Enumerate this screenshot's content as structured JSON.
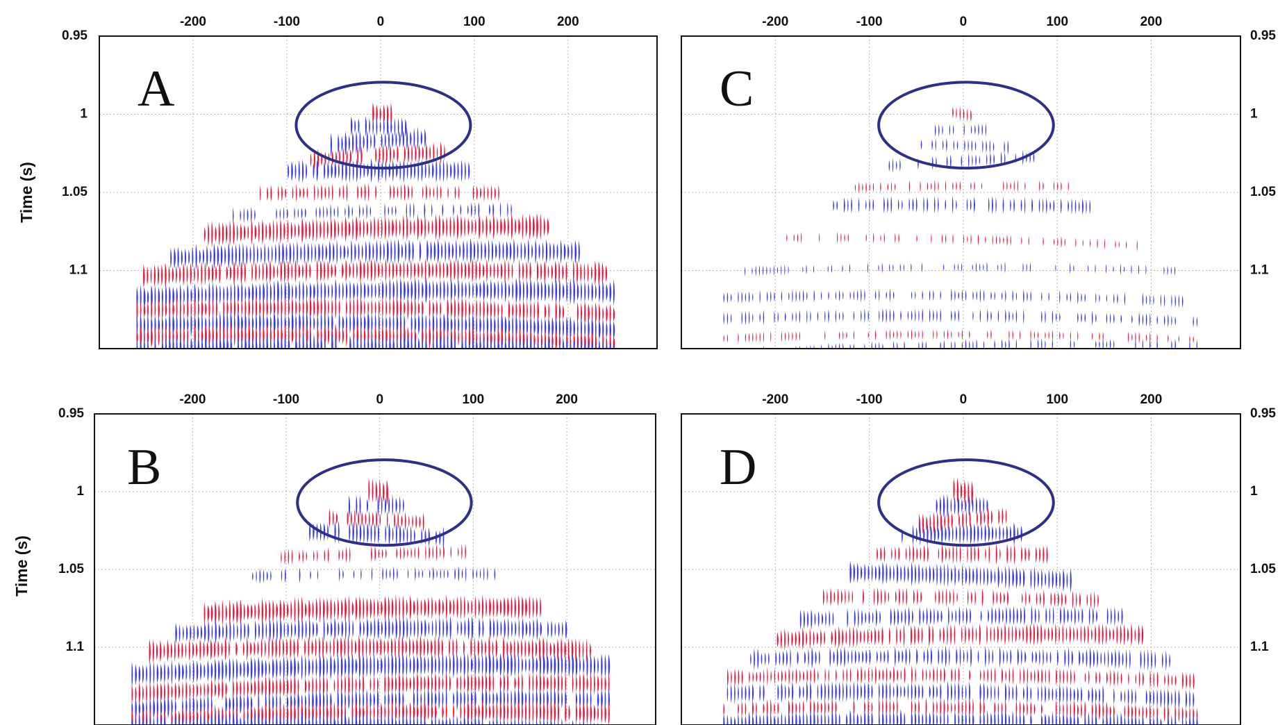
{
  "chart_data": [
    {
      "type": "wiggle",
      "panel_label": "A",
      "ylabel": "Time (s)",
      "x_ticks": [
        "-200",
        "-100",
        "0",
        "100",
        "200"
      ],
      "y_ticks": [
        "0.95",
        "1",
        "1.05",
        "1.1"
      ],
      "xlim": [
        -300,
        295
      ],
      "ylim": [
        0.95,
        1.15
      ],
      "x_range": [
        -300,
        295
      ],
      "apex": [
        0,
        0.995
      ],
      "outer_x": [
        -260,
        250
      ],
      "flank_time": 1.103,
      "highlight_ellipse": {
        "center": [
          3,
          1.007
        ],
        "width_x": 186,
        "height_t": 0.055
      },
      "reflectors": [
        {
          "time": 1.0,
          "color": "#e8193c",
          "strength": 0.95
        },
        {
          "time": 1.008,
          "color": "#3a3ce8",
          "strength": 0.8
        },
        {
          "time": 1.017,
          "color": "#3a3ce8",
          "strength": 0.9
        },
        {
          "time": 1.026,
          "color": "#e8193c",
          "strength": 0.75
        },
        {
          "time": 1.036,
          "color": "#3a3ce8",
          "strength": 0.9
        },
        {
          "time": 1.05,
          "color": "#e8193c",
          "strength": 0.6
        },
        {
          "time": 1.062,
          "color": "#3a3ce8",
          "strength": 0.5
        },
        {
          "time": 1.073,
          "color": "#e8193c",
          "strength": 1.0
        },
        {
          "time": 1.088,
          "color": "#3a3ce8",
          "strength": 0.95
        },
        {
          "time": 1.1,
          "color": "#e8193c",
          "strength": 0.9
        },
        {
          "time": 1.113,
          "color": "#3a3ce8",
          "strength": 1.0
        },
        {
          "time": 1.124,
          "color": "#e8193c",
          "strength": 0.9
        },
        {
          "time": 1.134,
          "color": "#3a3ce8",
          "strength": 0.95
        },
        {
          "time": 1.142,
          "color": "#e8193c",
          "strength": 0.95
        },
        {
          "time": 1.148,
          "color": "#3a3ce8",
          "strength": 0.9
        }
      ]
    },
    {
      "type": "wiggle",
      "panel_label": "B",
      "ylabel": "Time (s)",
      "x_ticks": [
        "-200",
        "-100",
        "0",
        "100",
        "200"
      ],
      "y_ticks": [
        "0.95",
        "1",
        "1.05",
        "1.1"
      ],
      "xlim": [
        -305,
        295
      ],
      "ylim": [
        0.95,
        1.15
      ],
      "x_range": [
        -305,
        295
      ],
      "apex": [
        0,
        0.995
      ],
      "outer_x": [
        -265,
        245
      ],
      "flank_time": 1.108,
      "highlight_ellipse": {
        "center": [
          5,
          1.007
        ],
        "width_x": 186,
        "height_t": 0.055
      },
      "reflectors": [
        {
          "time": 1.0,
          "color": "#e8193c",
          "strength": 0.95
        },
        {
          "time": 1.009,
          "color": "#3a3ce8",
          "strength": 0.8
        },
        {
          "time": 1.018,
          "color": "#e8193c",
          "strength": 0.7
        },
        {
          "time": 1.027,
          "color": "#3a3ce8",
          "strength": 0.85
        },
        {
          "time": 1.04,
          "color": "#e8193c",
          "strength": 0.5
        },
        {
          "time": 1.053,
          "color": "#3a3ce8",
          "strength": 0.45
        },
        {
          "time": 1.075,
          "color": "#e8193c",
          "strength": 1.0
        },
        {
          "time": 1.088,
          "color": "#3a3ce8",
          "strength": 0.9
        },
        {
          "time": 1.1,
          "color": "#e8193c",
          "strength": 0.9
        },
        {
          "time": 1.112,
          "color": "#3a3ce8",
          "strength": 1.0
        },
        {
          "time": 1.124,
          "color": "#e8193c",
          "strength": 0.85
        },
        {
          "time": 1.134,
          "color": "#3a3ce8",
          "strength": 0.9
        },
        {
          "time": 1.142,
          "color": "#e8193c",
          "strength": 0.95
        },
        {
          "time": 1.15,
          "color": "#3a3ce8",
          "strength": 0.95
        }
      ]
    },
    {
      "type": "wiggle",
      "panel_label": "C",
      "ylabel": "",
      "x_ticks": [
        "-200",
        "-100",
        "0",
        "100",
        "200"
      ],
      "y_ticks": [
        "0.95",
        "1",
        "1.05",
        "1.1"
      ],
      "xlim": [
        -300,
        295
      ],
      "ylim": [
        0.95,
        1.15
      ],
      "x_range": [
        -300,
        295
      ],
      "apex": [
        0,
        0.995
      ],
      "outer_x": [
        -255,
        250
      ],
      "flank_time": 1.108,
      "highlight_ellipse": {
        "center": [
          3,
          1.007
        ],
        "width_x": 186,
        "height_t": 0.055
      },
      "reflectors": [
        {
          "time": 1.0,
          "color": "#e8193c",
          "strength": 0.45
        },
        {
          "time": 1.01,
          "color": "#3a3ce8",
          "strength": 0.35
        },
        {
          "time": 1.02,
          "color": "#3a3ce8",
          "strength": 0.4
        },
        {
          "time": 1.03,
          "color": "#3a3ce8",
          "strength": 0.45
        },
        {
          "time": 1.046,
          "color": "#e8193c",
          "strength": 0.3
        },
        {
          "time": 1.058,
          "color": "#3a3ce8",
          "strength": 0.55
        },
        {
          "time": 1.08,
          "color": "#e8193c",
          "strength": 0.25
        },
        {
          "time": 1.098,
          "color": "#3a3ce8",
          "strength": 0.2
        },
        {
          "time": 1.116,
          "color": "#3a3ce8",
          "strength": 0.35
        },
        {
          "time": 1.129,
          "color": "#3a3ce8",
          "strength": 0.4
        },
        {
          "time": 1.141,
          "color": "#e8193c",
          "strength": 0.25
        },
        {
          "time": 1.148,
          "color": "#3a3ce8",
          "strength": 0.3
        }
      ]
    },
    {
      "type": "wiggle",
      "panel_label": "D",
      "ylabel": "",
      "x_ticks": [
        "-200",
        "-100",
        "0",
        "100",
        "200"
      ],
      "y_ticks": [
        "0.95",
        "1",
        "1.05",
        "1.1"
      ],
      "xlim": [
        -300,
        295
      ],
      "ylim": [
        0.95,
        1.15
      ],
      "x_range": [
        -300,
        295
      ],
      "apex": [
        0,
        0.995
      ],
      "outer_x": [
        -255,
        250
      ],
      "flank_time": 1.12,
      "highlight_ellipse": {
        "center": [
          3,
          1.007
        ],
        "width_x": 186,
        "height_t": 0.055
      },
      "reflectors": [
        {
          "time": 1.0,
          "color": "#e8193c",
          "strength": 0.95
        },
        {
          "time": 1.009,
          "color": "#3a3ce8",
          "strength": 0.85
        },
        {
          "time": 1.018,
          "color": "#e8193c",
          "strength": 0.75
        },
        {
          "time": 1.027,
          "color": "#3a3ce8",
          "strength": 0.85
        },
        {
          "time": 1.04,
          "color": "#e8193c",
          "strength": 0.7
        },
        {
          "time": 1.054,
          "color": "#3a3ce8",
          "strength": 0.9
        },
        {
          "time": 1.068,
          "color": "#e8193c",
          "strength": 0.6
        },
        {
          "time": 1.08,
          "color": "#3a3ce8",
          "strength": 0.7
        },
        {
          "time": 1.092,
          "color": "#e8193c",
          "strength": 0.8
        },
        {
          "time": 1.106,
          "color": "#3a3ce8",
          "strength": 0.75
        },
        {
          "time": 1.118,
          "color": "#e8193c",
          "strength": 0.6
        },
        {
          "time": 1.129,
          "color": "#3a3ce8",
          "strength": 0.75
        },
        {
          "time": 1.139,
          "color": "#e8193c",
          "strength": 0.65
        },
        {
          "time": 1.147,
          "color": "#3a3ce8",
          "strength": 0.8
        }
      ]
    }
  ]
}
